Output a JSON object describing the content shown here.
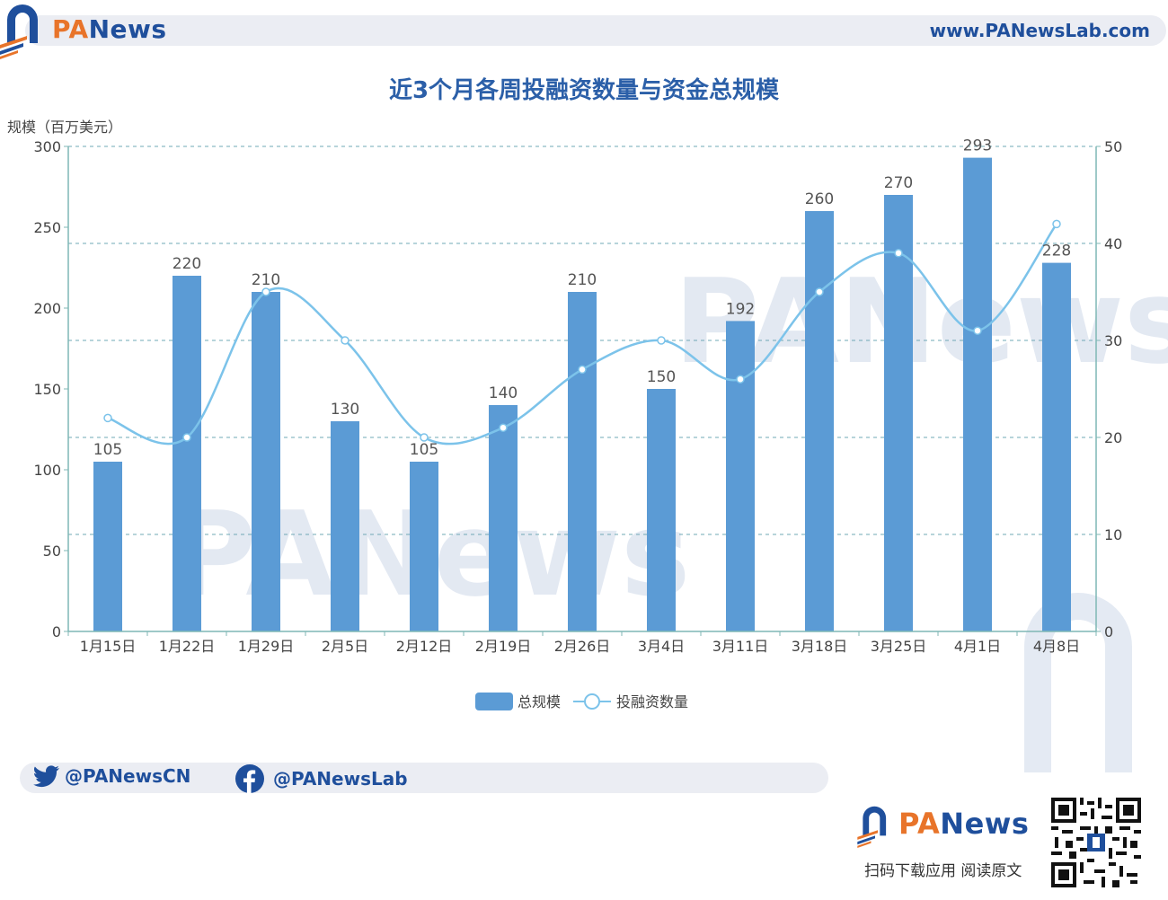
{
  "brand": {
    "name_prefix": "PA",
    "name_suffix": "News",
    "url": "www.PANewsLab.com"
  },
  "title": "近3个月各周投融资数量与资金总规模",
  "colors": {
    "bar": "#5b9bd5",
    "line": "#7cc3ea",
    "axis": "#7fb7b5",
    "grid": "#6fa8b5",
    "brand": "#1f4f9c",
    "accent": "#e8742a"
  },
  "chart_data": {
    "type": "bar",
    "categories": [
      "1月15日",
      "1月22日",
      "1月29日",
      "2月5日",
      "2月12日",
      "2月19日",
      "2月26日",
      "3月4日",
      "3月11日",
      "3月18日",
      "3月25日",
      "4月1日",
      "4月8日"
    ],
    "ylabel": "规模（百万美元）",
    "ylim": [
      0,
      300
    ],
    "y2lim": [
      0,
      50
    ],
    "yticks": [
      "0",
      "50",
      "100",
      "150",
      "200",
      "250",
      "300"
    ],
    "y2ticks": [
      "0",
      "10",
      "20",
      "30",
      "40",
      "50"
    ],
    "series": [
      {
        "name": "总规模",
        "type": "bar",
        "axis": "left",
        "values": [
          105,
          220,
          210,
          130,
          105,
          140,
          210,
          150,
          192,
          260,
          270,
          293,
          228
        ]
      },
      {
        "name": "投融资数量",
        "type": "line",
        "axis": "right",
        "values": [
          22,
          20,
          35,
          30,
          20,
          21,
          27,
          30,
          26,
          35,
          39,
          31,
          42
        ]
      }
    ],
    "grid": true,
    "legend_position": "bottom-center"
  },
  "social": {
    "twitter": "@PANewsCN",
    "facebook": "@PANewsLab"
  },
  "footer": {
    "scan_text": "扫码下载应用  阅读原文"
  },
  "icons": {
    "twitter": "twitter-icon",
    "facebook": "facebook-icon",
    "logo": "panews-logo-icon",
    "qr": "qr-code-icon"
  }
}
